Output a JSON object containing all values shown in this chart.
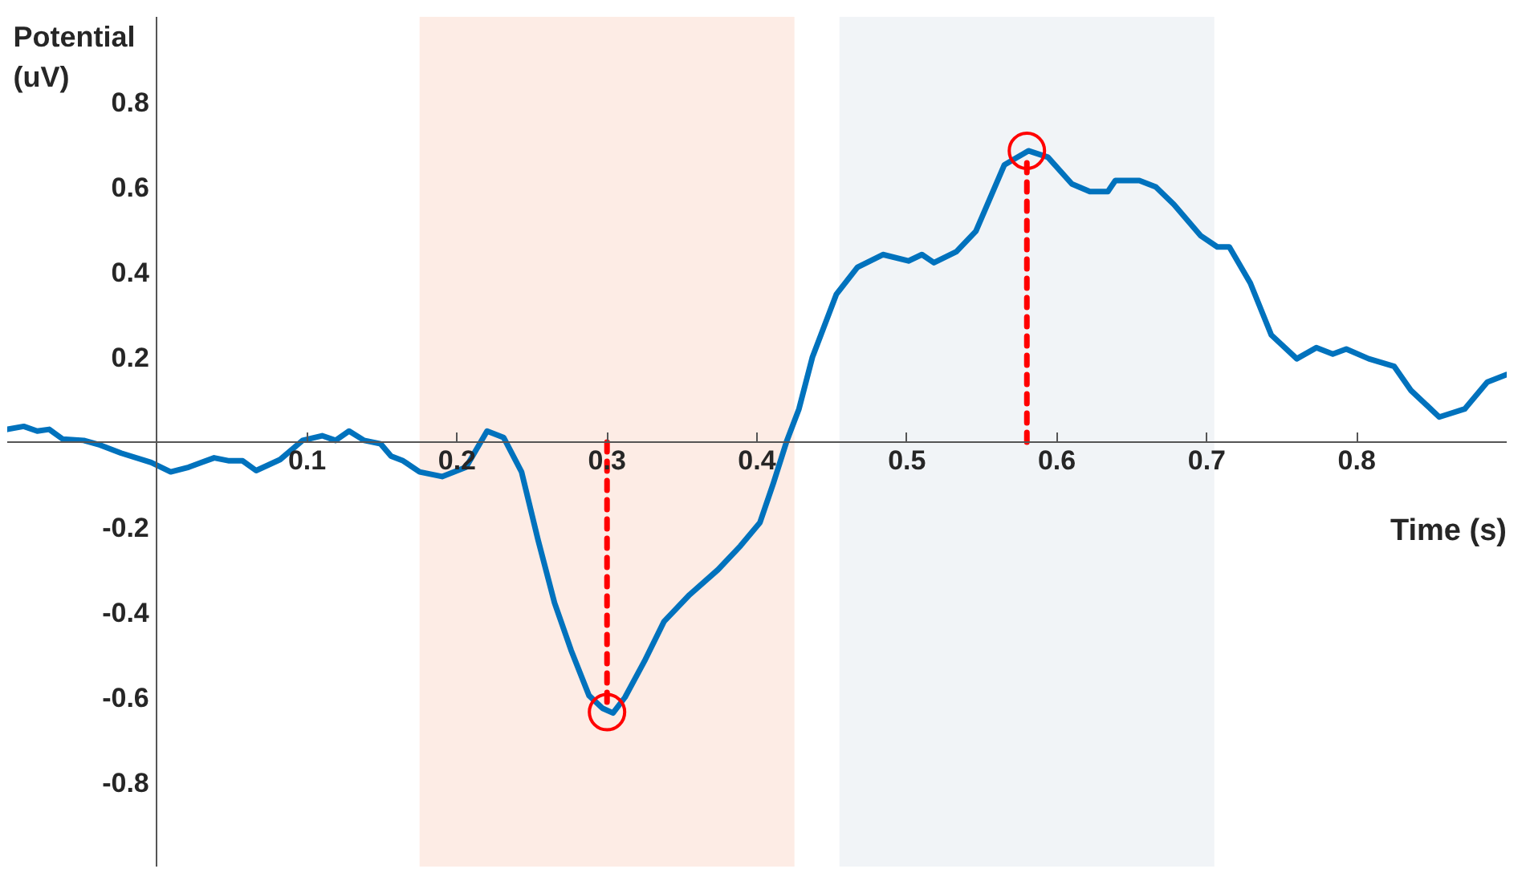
{
  "chart_data": {
    "type": "line",
    "xlabel": "Time (s)",
    "ylabel": "Potential\n(uV)",
    "xlim": [
      -0.1,
      0.9
    ],
    "ylim": [
      -1.0,
      1.0
    ],
    "xticks": [
      0.1,
      0.2,
      0.3,
      0.4,
      0.5,
      0.6,
      0.7,
      0.8
    ],
    "yticks": [
      -0.8,
      -0.6,
      -0.4,
      -0.2,
      0.2,
      0.4,
      0.6,
      0.8
    ],
    "grid": false,
    "marker": "none",
    "line_style": "solid",
    "bands": [
      {
        "axis": "x",
        "from": 0.175,
        "to": 0.425,
        "color": "#fbe0d4"
      },
      {
        "axis": "x",
        "from": 0.455,
        "to": 0.705,
        "color": "#e8ecf2"
      }
    ],
    "series": [
      {
        "color": "#0072bd",
        "x": [
          -0.1,
          -0.089,
          -0.08,
          -0.072,
          -0.063,
          -0.049,
          -0.038,
          -0.024,
          -0.004,
          0.009,
          0.021,
          0.038,
          0.048,
          0.057,
          0.066,
          0.082,
          0.097,
          0.11,
          0.119,
          0.128,
          0.138,
          0.149,
          0.156,
          0.164,
          0.175,
          0.19,
          0.206,
          0.22,
          0.231,
          0.243,
          0.254,
          0.265,
          0.276,
          0.288,
          0.297,
          0.304,
          0.312,
          0.325,
          0.338,
          0.355,
          0.374,
          0.389,
          0.402,
          0.411,
          0.42,
          0.428,
          0.437,
          0.453,
          0.467,
          0.484,
          0.501,
          0.51,
          0.518,
          0.533,
          0.546,
          0.565,
          0.581,
          0.594,
          0.61,
          0.622,
          0.634,
          0.639,
          0.655,
          0.666,
          0.678,
          0.696,
          0.707,
          0.715,
          0.729,
          0.743,
          0.76,
          0.773,
          0.784,
          0.793,
          0.808,
          0.825,
          0.836,
          0.855,
          0.872,
          0.887,
          0.9
        ],
        "values": [
          0.03,
          0.037,
          0.026,
          0.03,
          0.007,
          0.004,
          -0.007,
          -0.026,
          -0.048,
          -0.07,
          -0.059,
          -0.037,
          -0.044,
          -0.044,
          -0.067,
          -0.041,
          0.004,
          0.015,
          0.004,
          0.026,
          0.004,
          -0.004,
          -0.033,
          -0.044,
          -0.07,
          -0.081,
          -0.059,
          0.026,
          0.011,
          -0.07,
          -0.23,
          -0.378,
          -0.489,
          -0.596,
          -0.626,
          -0.637,
          -0.6,
          -0.515,
          -0.422,
          -0.359,
          -0.3,
          -0.244,
          -0.189,
          -0.096,
          0.004,
          0.078,
          0.2,
          0.348,
          0.411,
          0.441,
          0.426,
          0.441,
          0.422,
          0.448,
          0.496,
          0.652,
          0.685,
          0.67,
          0.607,
          0.589,
          0.589,
          0.615,
          0.615,
          0.6,
          0.559,
          0.485,
          0.459,
          0.459,
          0.374,
          0.252,
          0.196,
          0.222,
          0.207,
          0.219,
          0.196,
          0.178,
          0.122,
          0.059,
          0.078,
          0.141,
          0.159
        ]
      },
      {
        "type": "line",
        "color": "#ff0000",
        "line_style": "dashed",
        "x": [
          0.3,
          0.3
        ],
        "values": [
          0,
          -0.615
        ]
      },
      {
        "type": "line",
        "color": "#ff0000",
        "line_style": "dashed",
        "x": [
          0.58,
          0.58
        ],
        "values": [
          0,
          0.665
        ]
      },
      {
        "type": "scatter",
        "color": "#ff0000",
        "marker": "circle",
        "x": [
          0.3,
          0.58
        ],
        "values": [
          -0.635,
          0.685
        ]
      }
    ]
  }
}
